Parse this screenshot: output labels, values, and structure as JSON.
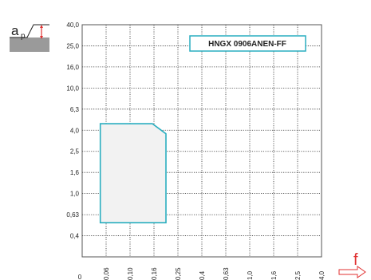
{
  "chart_data": {
    "type": "area",
    "title": "HNGX 0906ANEN-FF",
    "y_axis_symbol": "a",
    "y_axis_subscript": "p",
    "x_axis_symbol": "f",
    "x_ticks": [
      "0",
      "0,06",
      "0,10",
      "0,16",
      "0,25",
      "0,4",
      "0,63",
      "1,0",
      "1,6",
      "2,5",
      "4,0"
    ],
    "y_ticks": [
      "0,4",
      "0,63",
      "1,0",
      "1,6",
      "2,5",
      "4,0",
      "6,3",
      "10,0",
      "16,0",
      "25,0",
      "40,0"
    ],
    "x_scale": "log",
    "y_scale": "log",
    "grid": "dotted",
    "region": {
      "polygon": [
        {
          "f": 0.053,
          "ap": 0.53
        },
        {
          "f": 0.053,
          "ap": 4.6
        },
        {
          "f": 0.155,
          "ap": 4.6
        },
        {
          "f": 0.2,
          "ap": 3.7
        },
        {
          "f": 0.2,
          "ap": 0.53
        }
      ],
      "fill": "#f2f2f2",
      "stroke": "#2aaec0"
    },
    "colors": {
      "accent": "#2aaec0",
      "arrow": "#e03131",
      "icon_bg": "#9a9a9a"
    }
  }
}
